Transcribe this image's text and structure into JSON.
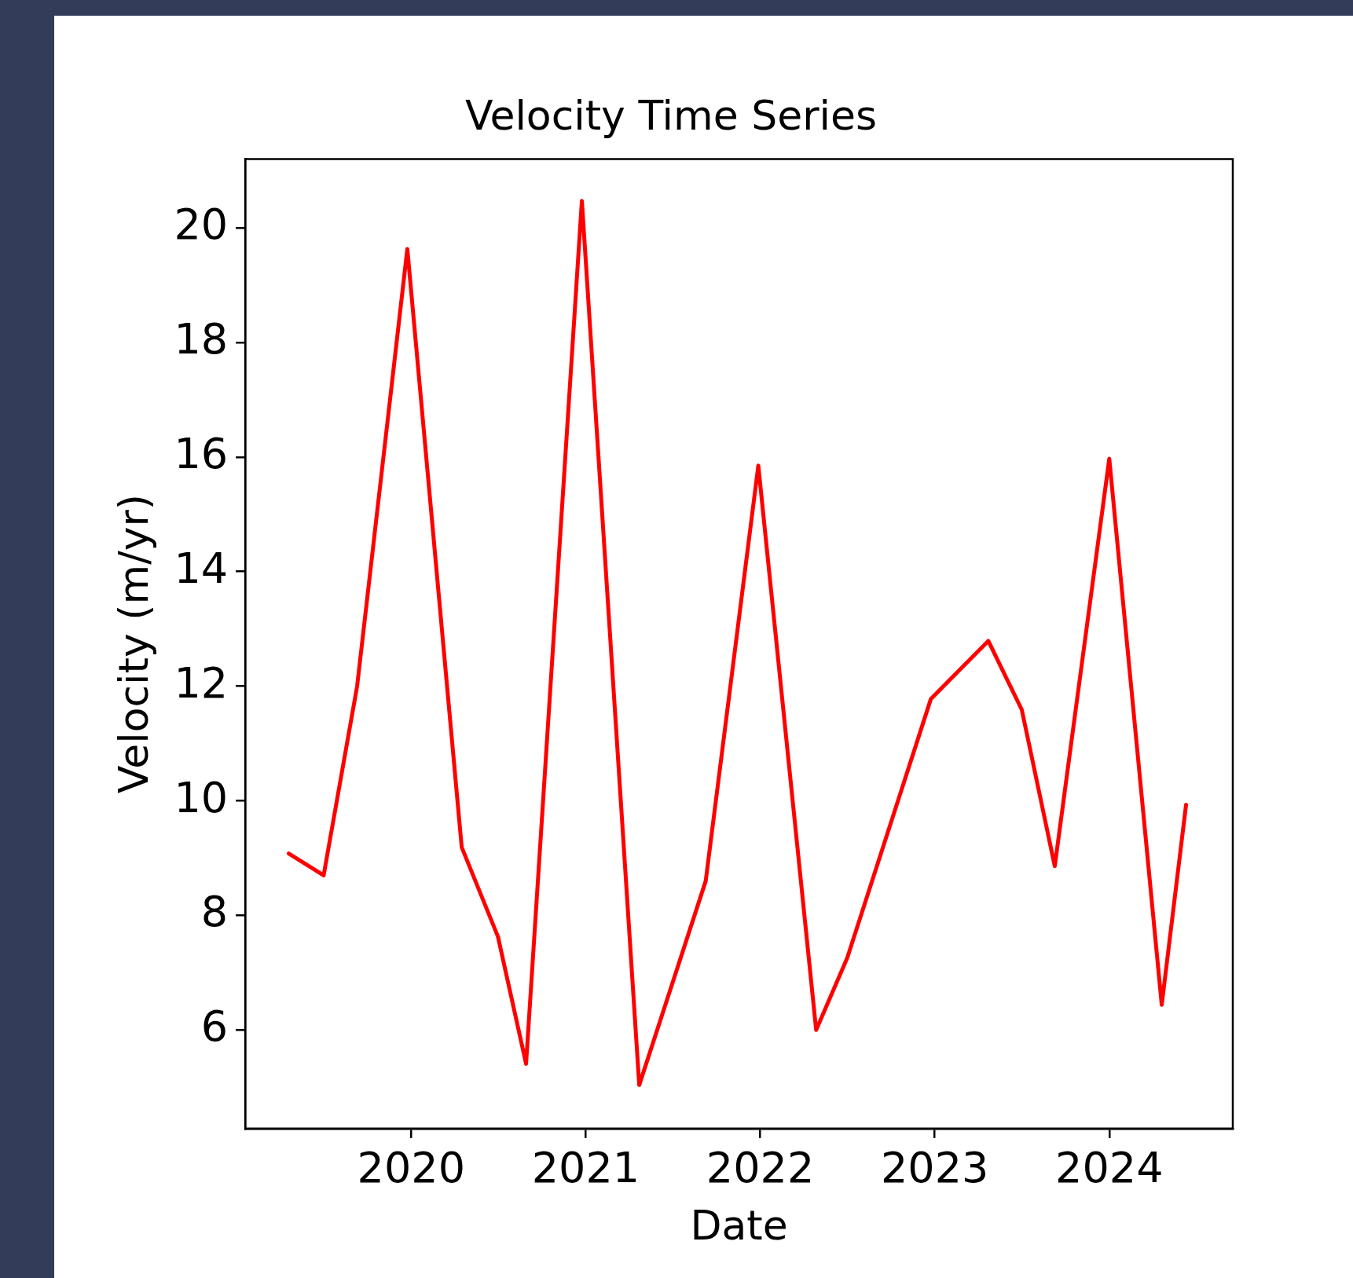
{
  "chart_data": {
    "type": "line",
    "title": "Velocity Time Series",
    "xlabel": "Date",
    "ylabel": "Velocity (m/yr)",
    "x": [
      "2019-04-20",
      "2019-07-02",
      "2019-09-10",
      "2019-12-24",
      "2020-04-16",
      "2020-07-01",
      "2020-08-29",
      "2020-12-24",
      "2021-04-23",
      "2021-09-09",
      "2021-12-28",
      "2022-04-28",
      "2022-07-02",
      "2022-12-24",
      "2023-04-23",
      "2023-07-02",
      "2023-09-09",
      "2024-01-01",
      "2024-04-20",
      "2024-06-10"
    ],
    "series": [
      {
        "color": "#ff0000",
        "values": [
          9.08,
          8.7,
          12.0,
          19.63,
          9.19,
          7.63,
          5.41,
          20.47,
          5.04,
          8.6,
          15.85,
          6.0,
          7.26,
          11.78,
          12.79,
          11.59,
          8.86,
          15.97,
          6.44,
          9.93
        ]
      }
    ],
    "xlim": [
      "2019-01-19",
      "2024-09-16"
    ],
    "xticks": [
      "2020",
      "2021",
      "2022",
      "2023",
      "2024"
    ],
    "ylim": [
      4.28,
      21.2
    ],
    "yticks": [
      6,
      8,
      10,
      12,
      14,
      16,
      18,
      20
    ],
    "grid": false,
    "legend": false,
    "marker": "none",
    "line_style": "solid"
  }
}
